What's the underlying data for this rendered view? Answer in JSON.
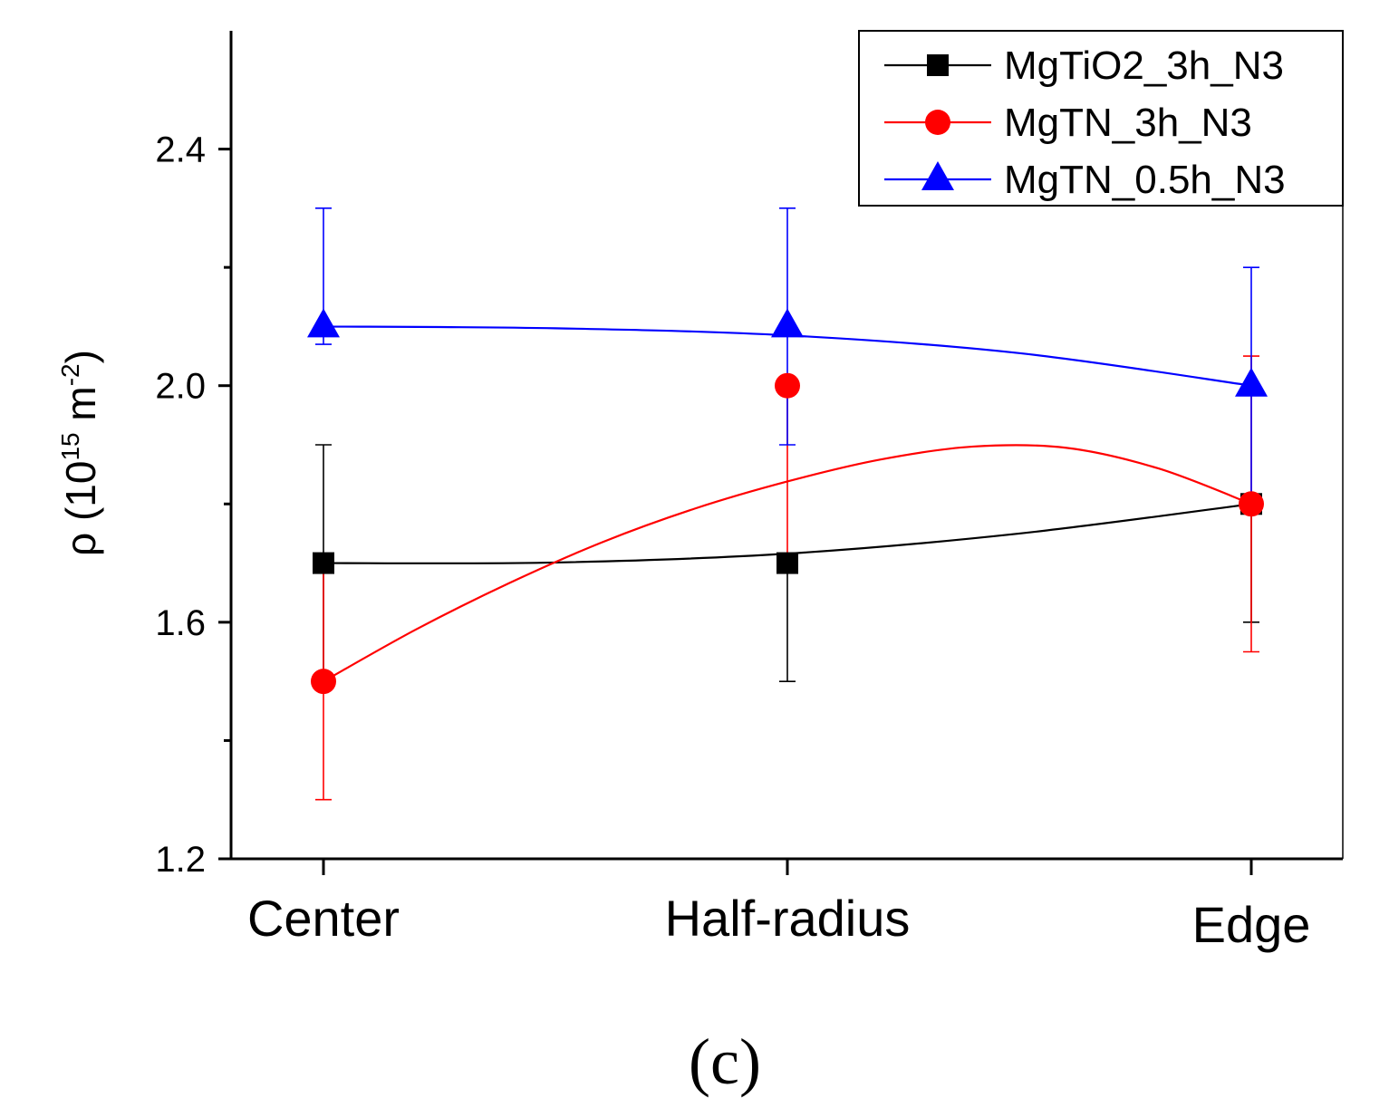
{
  "chart_data": {
    "type": "line",
    "categories": [
      "Center",
      "Half-radius",
      "Edge"
    ],
    "ylim": [
      1.2,
      2.6
    ],
    "yticks": [
      1.2,
      1.6,
      2.0,
      2.4
    ],
    "yticks_minor": [
      1.4,
      1.8,
      2.2
    ],
    "ylabel": {
      "symbol": "ρ",
      "open": " (10",
      "exp1": "15",
      "unit": " m",
      "exp2": "-2",
      "close": ")"
    },
    "xlabel": "",
    "series": [
      {
        "name": "MgTiO2_3h_N3",
        "color": "#000000",
        "marker": "square",
        "values": [
          1.7,
          1.7,
          1.8
        ],
        "err_low": [
          1.5,
          1.5,
          1.6
        ],
        "err_high": [
          1.9,
          1.7,
          1.8
        ],
        "curve": [
          [
            0.0,
            1.7
          ],
          [
            0.25,
            1.701
          ],
          [
            0.5,
            1.716
          ],
          [
            0.75,
            1.75
          ],
          [
            1.0,
            1.8
          ]
        ]
      },
      {
        "name": "MgTN_3h_N3",
        "color": "#ff0000",
        "marker": "circle",
        "values": [
          1.5,
          2.0,
          1.8
        ],
        "err_low": [
          1.3,
          1.7,
          1.55
        ],
        "err_high": [
          1.7,
          2.0,
          2.05
        ],
        "curve": [
          [
            0.0,
            1.5
          ],
          [
            0.1,
            1.588
          ],
          [
            0.2,
            1.666
          ],
          [
            0.3,
            1.735
          ],
          [
            0.4,
            1.792
          ],
          [
            0.5,
            1.838
          ],
          [
            0.6,
            1.875
          ],
          [
            0.7,
            1.897
          ],
          [
            0.8,
            1.895
          ],
          [
            0.9,
            1.86
          ],
          [
            1.0,
            1.8
          ]
        ]
      },
      {
        "name": "MgTN_0.5h_N3",
        "color": "#0000ff",
        "marker": "triangle",
        "values": [
          2.1,
          2.1,
          2.0
        ],
        "err_low": [
          2.07,
          1.9,
          1.8
        ],
        "err_high": [
          2.3,
          2.3,
          2.2
        ],
        "curve": [
          [
            0.0,
            2.1
          ],
          [
            0.25,
            2.097
          ],
          [
            0.5,
            2.085
          ],
          [
            0.75,
            2.055
          ],
          [
            1.0,
            2.0
          ]
        ]
      }
    ],
    "legend_position": "top-right",
    "panel_caption": "(c)"
  }
}
